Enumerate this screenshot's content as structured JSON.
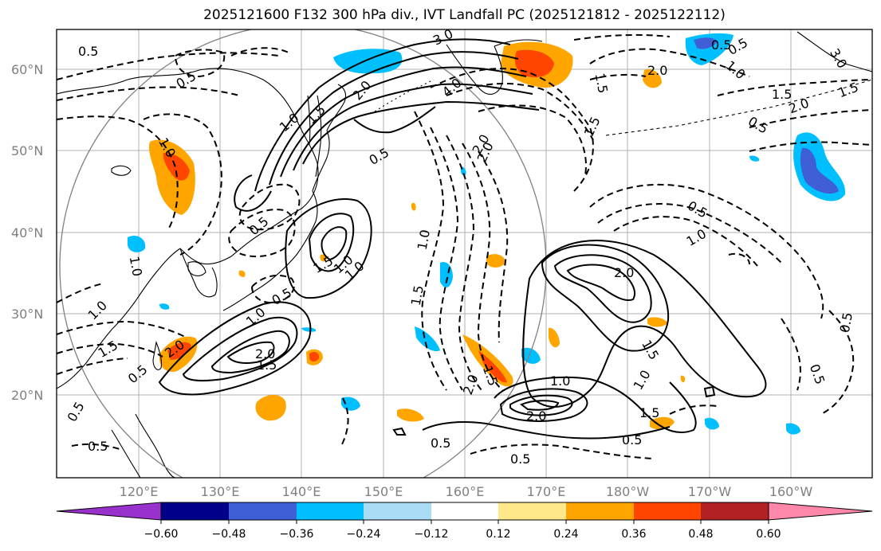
{
  "title": "2025121600 F132 300 hPa div., IVT Landfall PC (2025121812 - 2025122112)",
  "lat_labels": [
    "60°N",
    "50°N",
    "40°N",
    "30°N",
    "20°N"
  ],
  "lon_labels": [
    "120°E",
    "130°E",
    "140°E",
    "150°E",
    "160°E",
    "170°E",
    "180°W",
    "170°W",
    "160°W"
  ],
  "colorbar": {
    "ticks": [
      "−0.60",
      "−0.48",
      "−0.36",
      "−0.24",
      "−0.12",
      "0.12",
      "0.24",
      "0.36",
      "0.48",
      "0.60"
    ],
    "colors": [
      "#9932cc",
      "#00008b",
      "#3f5fd6",
      "#00bfff",
      "#aadcf5",
      "#ffffff",
      "#ffe88a",
      "#ffa500",
      "#ff4500",
      "#b22222",
      "#ff88aa"
    ]
  },
  "contour_labels": [
    "0.5",
    "0.5",
    "1.0",
    "1.5",
    "2.0",
    "3.0",
    "4.0",
    "2.0",
    "1.5",
    "1.5",
    "2.0",
    "1.0",
    "0.5",
    "0.5",
    "1.5",
    "1.0",
    "0.5",
    "2.0",
    "1.5",
    "1.0",
    "0.5",
    "2.0",
    "1.5",
    "1.0",
    "0.5",
    "0.5",
    "1.0",
    "2.0",
    "1.5",
    "1.0",
    "2.0",
    "1.5",
    "1.0",
    "0.5",
    "0.5",
    "0.5",
    "0.5",
    "1.5",
    "1.0",
    "2.0",
    "1.0",
    "1.5",
    "0.5",
    "0.5",
    "2.0",
    "0.5",
    "0.5",
    "3.0",
    "1.5",
    "1.0",
    "0.5",
    "1.0",
    "1.5",
    "2.0"
  ]
}
